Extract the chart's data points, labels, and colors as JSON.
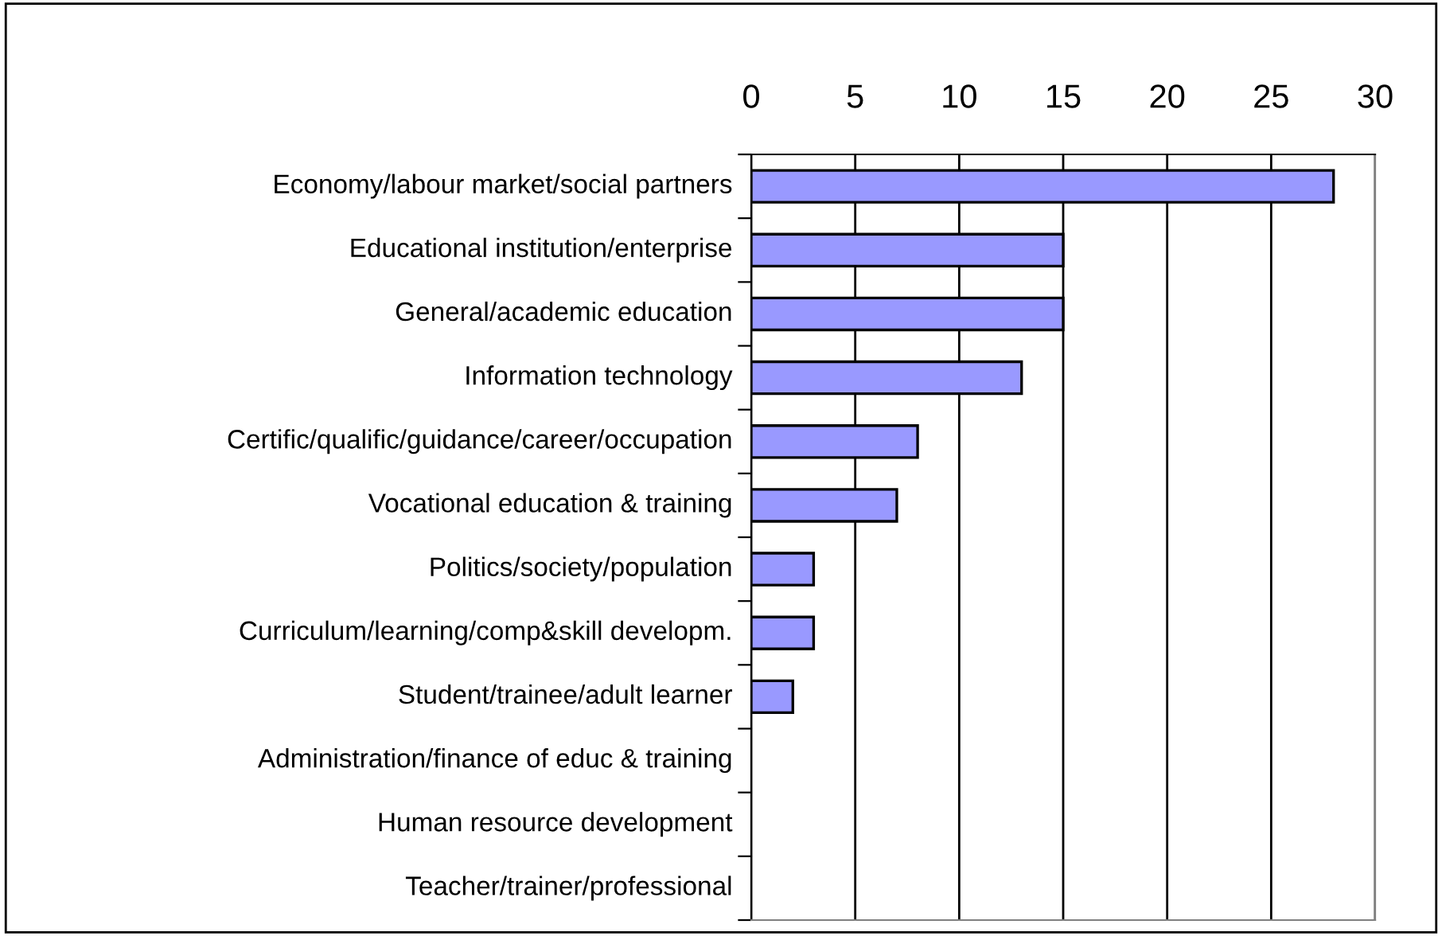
{
  "chart_data": {
    "type": "bar",
    "orientation": "horizontal",
    "categories": [
      "Economy/labour market/social partners",
      "Educational institution/enterprise",
      "General/academic education",
      "Information technology",
      "Certific/qualific/guidance/career/occupation",
      "Vocational education & training",
      "Politics/society/population",
      "Curriculum/learning/comp&skill developm.",
      "Student/trainee/adult learner",
      "Administration/finance of educ & training",
      "Human resource development",
      "Teacher/trainer/professional"
    ],
    "values": [
      28,
      15,
      15,
      13,
      8,
      7,
      3,
      3,
      2,
      0,
      0,
      0
    ],
    "color": "#9999ff",
    "xlim": [
      0,
      30
    ],
    "xticks": [
      0,
      5,
      10,
      15,
      20,
      25,
      30
    ],
    "grid": "x"
  }
}
